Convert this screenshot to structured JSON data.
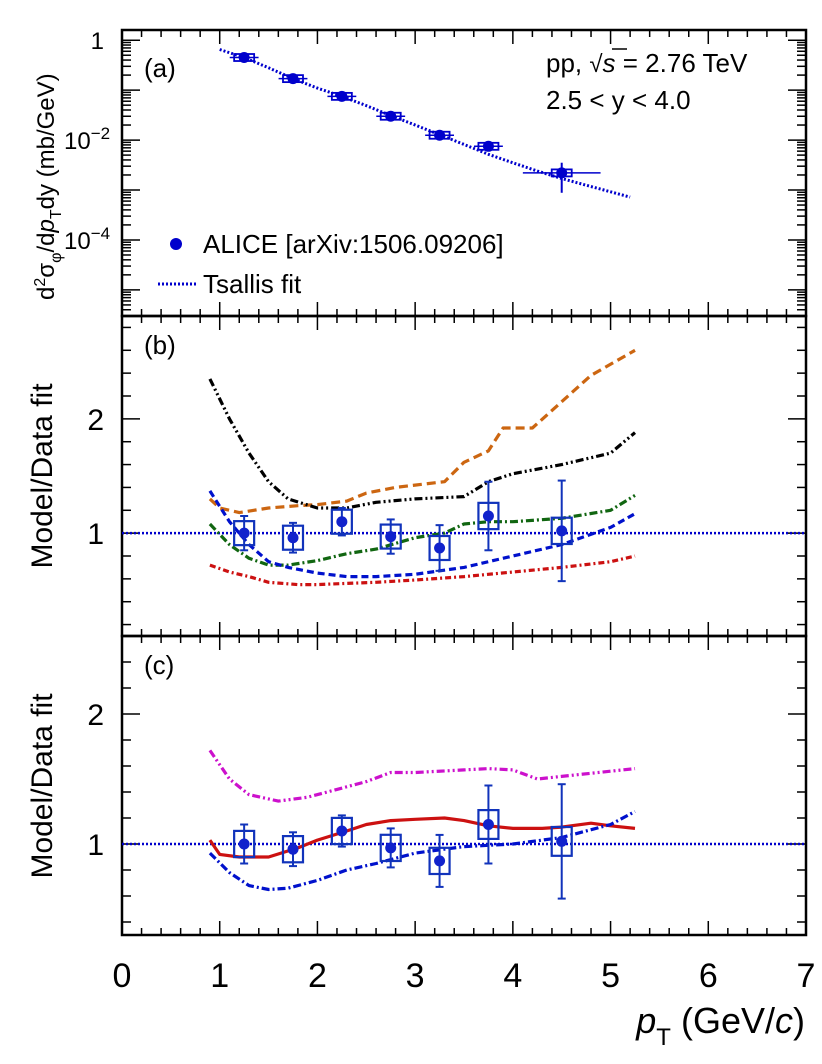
{
  "chart_data": [
    {
      "panel": "(a)",
      "type": "scatter",
      "ylabel": "d²σφ/dpₜdy (mb/GeV)",
      "ylabel_parts": {
        "pre": "d",
        "sup2": "2",
        "sigma": "σ",
        "phi": "φ",
        "mid": "/d",
        "p": "p",
        "T": "T",
        "post": "dy (mb/GeV)"
      },
      "yscale": "log",
      "ylim": [
        3e-06,
        1.6
      ],
      "xlim": [
        0,
        7
      ],
      "ytick_labels": [
        {
          "value": 1,
          "base": "1",
          "exp": ""
        },
        {
          "value": 0.01,
          "base": "10",
          "exp": "−2"
        },
        {
          "value": 0.0001,
          "base": "10",
          "exp": "−4"
        }
      ],
      "annotations": {
        "line1_pre": "pp, ",
        "sqrt": "√",
        "s": "s",
        "line1_post": " = 2.76 TeV",
        "line2": "2.5 < y < 4.0"
      },
      "legend": [
        {
          "label": "ALICE [arXiv:1506.09206]",
          "marker": "circle",
          "color": "#0000cc"
        },
        {
          "label": "Tsallis fit",
          "marker": "dotted-line",
          "color": "#0000cc"
        }
      ],
      "series": [
        {
          "name": "ALICE [arXiv:1506.09206]",
          "x": [
            1.25,
            1.75,
            2.25,
            2.75,
            3.25,
            3.75,
            4.5
          ],
          "y": [
            0.45,
            0.17,
            0.075,
            0.03,
            0.0125,
            0.0075,
            0.0022
          ],
          "xerr": [
            0.25,
            0.25,
            0.25,
            0.25,
            0.25,
            0.25,
            0.5
          ],
          "yerr_rel": [
            0.08,
            0.09,
            0.09,
            0.1,
            0.2,
            0.18,
            0.6
          ],
          "color": "#0000cc"
        },
        {
          "name": "Tsallis fit",
          "x": [
            1.0,
            1.25,
            1.5,
            1.75,
            2.0,
            2.25,
            2.5,
            2.75,
            3.0,
            3.25,
            3.5,
            3.75,
            4.0,
            4.25,
            4.5,
            4.75,
            5.0,
            5.2
          ],
          "y": [
            0.65,
            0.45,
            0.28,
            0.17,
            0.11,
            0.075,
            0.049,
            0.031,
            0.02,
            0.0128,
            0.0082,
            0.0052,
            0.0035,
            0.0024,
            0.0017,
            0.00125,
            0.00092,
            0.00072
          ],
          "style": "dotted",
          "color": "#0000cc"
        }
      ]
    },
    {
      "panel": "(b)",
      "type": "line",
      "ylabel": "Model/Data fit",
      "ylim": [
        0.1,
        2.9
      ],
      "xlim": [
        0,
        7
      ],
      "yticks": [
        1,
        2
      ],
      "reference_line": 1,
      "points": {
        "x": [
          1.25,
          1.75,
          2.25,
          2.75,
          3.25,
          3.75,
          4.5
        ],
        "y": [
          1.0,
          0.96,
          1.1,
          0.97,
          0.87,
          1.15,
          1.02
        ],
        "err": [
          0.15,
          0.13,
          0.12,
          0.15,
          0.2,
          0.3,
          0.44
        ],
        "syst": [
          0.07,
          0.07,
          0.07,
          0.07,
          0.07,
          0.08,
          0.08
        ]
      },
      "series": [
        {
          "name": "orange-dashed",
          "color": "#cc6611",
          "dash": "9,5",
          "x": [
            0.9,
            1.0,
            1.2,
            1.5,
            1.8,
            2.0,
            2.3,
            2.5,
            2.8,
            3.0,
            3.3,
            3.5,
            3.75,
            3.9,
            4.2,
            4.5,
            4.8,
            5.25
          ],
          "y": [
            1.3,
            1.22,
            1.18,
            1.22,
            1.24,
            1.25,
            1.28,
            1.35,
            1.4,
            1.42,
            1.45,
            1.62,
            1.72,
            1.92,
            1.92,
            2.15,
            2.38,
            2.6
          ]
        },
        {
          "name": "black-dash-dot-dot",
          "color": "#000000",
          "dash": "8,3,2,3,2,3",
          "x": [
            0.9,
            1.1,
            1.3,
            1.5,
            1.7,
            2.0,
            2.3,
            2.6,
            3.0,
            3.5,
            3.75,
            4.0,
            4.5,
            5.0,
            5.25
          ],
          "y": [
            2.35,
            2.0,
            1.7,
            1.45,
            1.3,
            1.22,
            1.22,
            1.27,
            1.3,
            1.32,
            1.45,
            1.52,
            1.6,
            1.7,
            1.88
          ]
        },
        {
          "name": "green-dash-dot",
          "color": "#116611",
          "dash": "8,3,2,3",
          "x": [
            0.9,
            1.1,
            1.3,
            1.5,
            1.7,
            2.0,
            2.3,
            2.6,
            3.0,
            3.3,
            3.5,
            3.75,
            4.0,
            4.5,
            5.0,
            5.25
          ],
          "y": [
            1.08,
            0.9,
            0.78,
            0.72,
            0.72,
            0.76,
            0.82,
            0.86,
            0.96,
            1.0,
            1.08,
            1.1,
            1.1,
            1.13,
            1.2,
            1.33
          ]
        },
        {
          "name": "blue-dashed",
          "color": "#0011cc",
          "dash": "7,4",
          "x": [
            0.9,
            1.1,
            1.3,
            1.5,
            1.7,
            2.0,
            2.3,
            2.6,
            3.0,
            3.5,
            4.0,
            4.5,
            5.0,
            5.25
          ],
          "y": [
            1.37,
            1.1,
            0.9,
            0.75,
            0.7,
            0.65,
            0.62,
            0.62,
            0.64,
            0.7,
            0.8,
            0.9,
            1.05,
            1.17
          ]
        },
        {
          "name": "red-dash-dot",
          "color": "#cc1111",
          "dash": "6,3,2,3",
          "x": [
            0.9,
            1.1,
            1.3,
            1.5,
            1.8,
            2.0,
            2.3,
            2.6,
            3.0,
            3.5,
            4.0,
            4.5,
            5.0,
            5.25
          ],
          "y": [
            0.72,
            0.66,
            0.62,
            0.57,
            0.55,
            0.55,
            0.56,
            0.57,
            0.59,
            0.62,
            0.66,
            0.7,
            0.75,
            0.8
          ]
        }
      ]
    },
    {
      "panel": "(c)",
      "type": "line",
      "ylabel": "Model/Data fit",
      "ylim": [
        0.3,
        2.6
      ],
      "xlim": [
        0,
        7
      ],
      "xlabel_parts": {
        "p": "p",
        "T": "T",
        "pre": " (GeV/",
        "c": "c",
        "post": ")"
      },
      "yticks": [
        1,
        2
      ],
      "xticks": [
        0,
        1,
        2,
        3,
        4,
        5,
        6,
        7
      ],
      "reference_line": 1,
      "points": {
        "x": [
          1.25,
          1.75,
          2.25,
          2.75,
          3.25,
          3.75,
          4.5
        ],
        "y": [
          1.0,
          0.96,
          1.1,
          0.97,
          0.87,
          1.15,
          1.02
        ],
        "err": [
          0.15,
          0.13,
          0.12,
          0.15,
          0.2,
          0.3,
          0.44
        ],
        "syst": [
          0.07,
          0.07,
          0.07,
          0.07,
          0.07,
          0.08,
          0.08
        ]
      },
      "series": [
        {
          "name": "magenta-dash-dot-dot",
          "color": "#cc11cc",
          "dash": "8,3,2,3,2,3",
          "x": [
            0.9,
            1.1,
            1.3,
            1.6,
            1.9,
            2.2,
            2.5,
            2.75,
            3.0,
            3.5,
            3.75,
            4.0,
            4.25,
            4.5,
            5.0,
            5.25
          ],
          "y": [
            1.72,
            1.5,
            1.38,
            1.33,
            1.36,
            1.42,
            1.48,
            1.55,
            1.55,
            1.57,
            1.58,
            1.57,
            1.5,
            1.52,
            1.56,
            1.58
          ]
        },
        {
          "name": "red-solid",
          "color": "#cc1111",
          "dash": "",
          "x": [
            0.9,
            1.0,
            1.2,
            1.5,
            1.8,
            2.0,
            2.3,
            2.5,
            2.75,
            3.0,
            3.3,
            3.5,
            3.75,
            4.0,
            4.3,
            4.5,
            4.8,
            5.0,
            5.25
          ],
          "y": [
            1.03,
            0.92,
            0.9,
            0.9,
            0.97,
            1.03,
            1.1,
            1.15,
            1.18,
            1.19,
            1.2,
            1.18,
            1.14,
            1.12,
            1.12,
            1.13,
            1.16,
            1.14,
            1.12
          ]
        },
        {
          "name": "blue-dash-dot",
          "color": "#0011cc",
          "dash": "8,3,2,3",
          "x": [
            0.9,
            1.1,
            1.3,
            1.5,
            1.7,
            2.0,
            2.3,
            2.6,
            3.0,
            3.5,
            4.0,
            4.5,
            5.0,
            5.25
          ],
          "y": [
            0.93,
            0.78,
            0.68,
            0.65,
            0.66,
            0.72,
            0.8,
            0.85,
            0.93,
            0.98,
            1.0,
            1.05,
            1.15,
            1.25
          ]
        }
      ]
    }
  ]
}
